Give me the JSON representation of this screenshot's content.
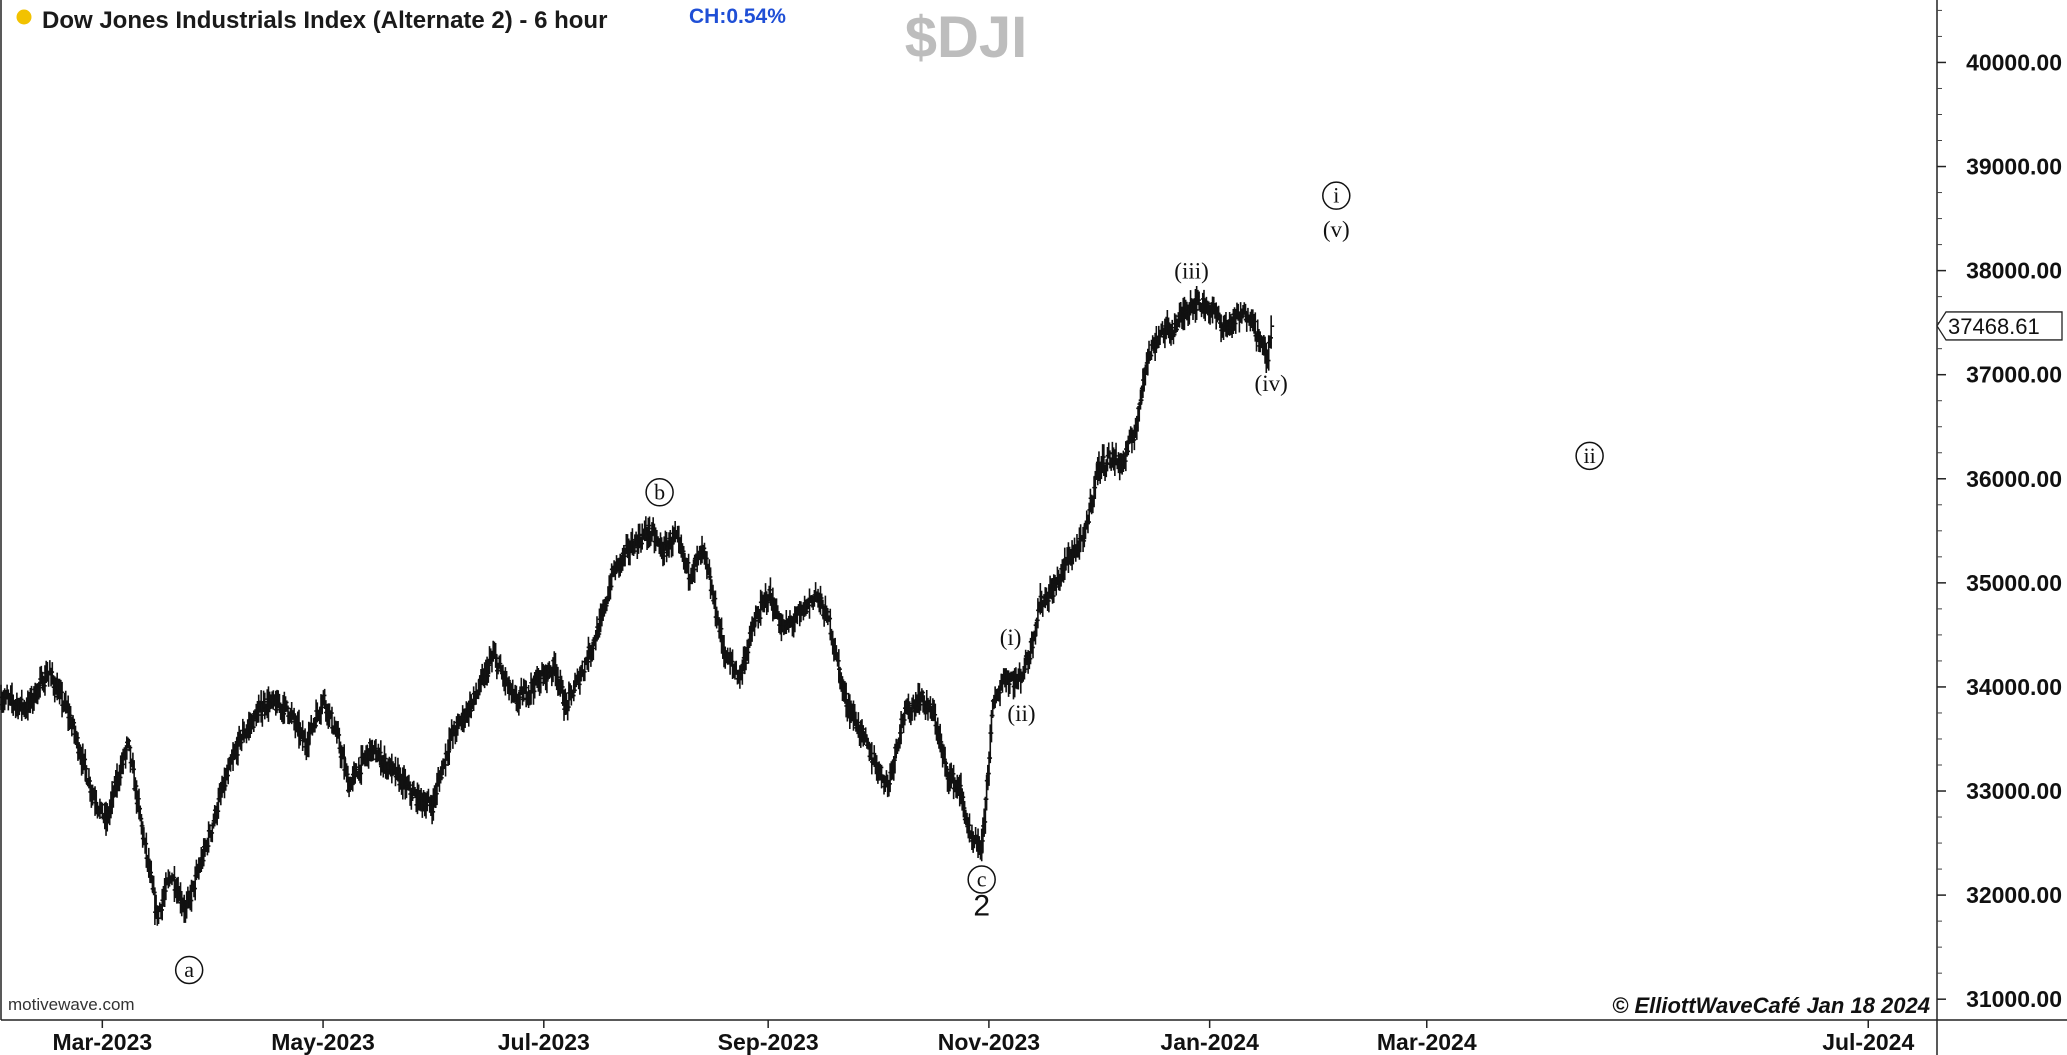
{
  "header": {
    "title": "Dow Jones Industrials Index (Alternate 2) - 6 hour",
    "change": "CH:0.54%",
    "symbol": "$DJI",
    "status_dot_color": "#f2c200"
  },
  "footer": {
    "source": "motivewave.com",
    "copyright": "© ElliottWaveCafé Jan 18 2024"
  },
  "chart_data": {
    "type": "ohlc",
    "title": "Dow Jones Industrials Index (Alternate 2) - 6 hour",
    "xlabel": "",
    "ylabel": "",
    "ylim": [
      30800,
      40600
    ],
    "xlim": [
      "2023-02-01",
      "2024-07-20"
    ],
    "grid": false,
    "price_axis_position": "right",
    "last_price": "37468.61",
    "x_tick_labels": [
      {
        "date": "2023-03-01",
        "label": "Mar-2023"
      },
      {
        "date": "2023-05-01",
        "label": "May-2023"
      },
      {
        "date": "2023-07-01",
        "label": "Jul-2023"
      },
      {
        "date": "2023-09-01",
        "label": "Sep-2023"
      },
      {
        "date": "2023-11-01",
        "label": "Nov-2023"
      },
      {
        "date": "2024-01-01",
        "label": "Jan-2024"
      },
      {
        "date": "2024-03-01",
        "label": "Mar-2024"
      },
      {
        "date": "2024-07-01",
        "label": "Jul-2024"
      }
    ],
    "y_tick_labels": [
      "31000.00",
      "32000.00",
      "33000.00",
      "34000.00",
      "35000.00",
      "36000.00",
      "37000.00",
      "38000.00",
      "39000.00",
      "40000.00"
    ],
    "price_path": [
      {
        "date": "2023-02-01",
        "close": 33900
      },
      {
        "date": "2023-02-08",
        "close": 33800
      },
      {
        "date": "2023-02-14",
        "close": 34150
      },
      {
        "date": "2023-02-20",
        "close": 33700
      },
      {
        "date": "2023-02-26",
        "close": 33000
      },
      {
        "date": "2023-03-02",
        "close": 32700
      },
      {
        "date": "2023-03-05",
        "close": 33100
      },
      {
        "date": "2023-03-08",
        "close": 33450
      },
      {
        "date": "2023-03-13",
        "close": 32400
      },
      {
        "date": "2023-03-16",
        "close": 31800
      },
      {
        "date": "2023-03-20",
        "close": 32200
      },
      {
        "date": "2023-03-24",
        "close": 31850
      },
      {
        "date": "2023-03-29",
        "close": 32400
      },
      {
        "date": "2023-04-03",
        "close": 33000
      },
      {
        "date": "2023-04-08",
        "close": 33500
      },
      {
        "date": "2023-04-15",
        "close": 33850
      },
      {
        "date": "2023-04-21",
        "close": 33800
      },
      {
        "date": "2023-04-26",
        "close": 33450
      },
      {
        "date": "2023-05-01",
        "close": 33900
      },
      {
        "date": "2023-05-05",
        "close": 33500
      },
      {
        "date": "2023-05-08",
        "close": 33050
      },
      {
        "date": "2023-05-14",
        "close": 33400
      },
      {
        "date": "2023-05-20",
        "close": 33200
      },
      {
        "date": "2023-05-26",
        "close": 32950
      },
      {
        "date": "2023-05-31",
        "close": 32850
      },
      {
        "date": "2023-06-05",
        "close": 33500
      },
      {
        "date": "2023-06-12",
        "close": 33900
      },
      {
        "date": "2023-06-17",
        "close": 34300
      },
      {
        "date": "2023-06-23",
        "close": 33850
      },
      {
        "date": "2023-06-29",
        "close": 34050
      },
      {
        "date": "2023-07-04",
        "close": 34200
      },
      {
        "date": "2023-07-07",
        "close": 33800
      },
      {
        "date": "2023-07-12",
        "close": 34200
      },
      {
        "date": "2023-07-17",
        "close": 34650
      },
      {
        "date": "2023-07-20",
        "close": 35100
      },
      {
        "date": "2023-07-25",
        "close": 35350
      },
      {
        "date": "2023-07-30",
        "close": 35500
      },
      {
        "date": "2023-08-03",
        "close": 35300
      },
      {
        "date": "2023-08-06",
        "close": 35450
      },
      {
        "date": "2023-08-10",
        "close": 35100
      },
      {
        "date": "2023-08-14",
        "close": 35300
      },
      {
        "date": "2023-08-17",
        "close": 34800
      },
      {
        "date": "2023-08-20",
        "close": 34300
      },
      {
        "date": "2023-08-24",
        "close": 34100
      },
      {
        "date": "2023-08-28",
        "close": 34600
      },
      {
        "date": "2023-09-01",
        "close": 34900
      },
      {
        "date": "2023-09-05",
        "close": 34550
      },
      {
        "date": "2023-09-10",
        "close": 34700
      },
      {
        "date": "2023-09-14",
        "close": 34900
      },
      {
        "date": "2023-09-18",
        "close": 34600
      },
      {
        "date": "2023-09-22",
        "close": 33900
      },
      {
        "date": "2023-09-26",
        "close": 33600
      },
      {
        "date": "2023-09-30",
        "close": 33300
      },
      {
        "date": "2023-10-04",
        "close": 33050
      },
      {
        "date": "2023-10-08",
        "close": 33700
      },
      {
        "date": "2023-10-13",
        "close": 33900
      },
      {
        "date": "2023-10-17",
        "close": 33700
      },
      {
        "date": "2023-10-20",
        "close": 33200
      },
      {
        "date": "2023-10-24",
        "close": 33000
      },
      {
        "date": "2023-10-27",
        "close": 32500
      },
      {
        "date": "2023-10-30",
        "close": 32450
      },
      {
        "date": "2023-11-02",
        "close": 33800
      },
      {
        "date": "2023-11-05",
        "close": 34100
      },
      {
        "date": "2023-11-09",
        "close": 34050
      },
      {
        "date": "2023-11-12",
        "close": 34300
      },
      {
        "date": "2023-11-15",
        "close": 34800
      },
      {
        "date": "2023-11-19",
        "close": 34950
      },
      {
        "date": "2023-11-23",
        "close": 35250
      },
      {
        "date": "2023-11-27",
        "close": 35400
      },
      {
        "date": "2023-12-01",
        "close": 36100
      },
      {
        "date": "2023-12-04",
        "close": 36200
      },
      {
        "date": "2023-12-08",
        "close": 36150
      },
      {
        "date": "2023-12-12",
        "close": 36550
      },
      {
        "date": "2023-12-14",
        "close": 37100
      },
      {
        "date": "2023-12-18",
        "close": 37400
      },
      {
        "date": "2023-12-22",
        "close": 37450
      },
      {
        "date": "2023-12-27",
        "close": 37700
      },
      {
        "date": "2024-01-01",
        "close": 37650
      },
      {
        "date": "2024-01-05",
        "close": 37450
      },
      {
        "date": "2024-01-09",
        "close": 37550
      },
      {
        "date": "2024-01-12",
        "close": 37600
      },
      {
        "date": "2024-01-15",
        "close": 37300
      },
      {
        "date": "2024-01-17",
        "close": 37150
      },
      {
        "date": "2024-01-18",
        "close": 37450
      }
    ],
    "wave_labels": [
      {
        "label": "a",
        "circled": true,
        "date": "2023-03-25",
        "price": 31280
      },
      {
        "label": "b",
        "circled": true,
        "date": "2023-08-02",
        "price": 35870
      },
      {
        "label": "c",
        "circled": true,
        "date": "2023-10-30",
        "price": 32150
      },
      {
        "label": "2",
        "circled": false,
        "date": "2023-10-30",
        "price": 31900
      },
      {
        "label": "(i)",
        "circled": false,
        "date": "2023-11-07",
        "price": 34480
      },
      {
        "label": "(ii)",
        "circled": false,
        "date": "2023-11-10",
        "price": 33750
      },
      {
        "label": "(iii)",
        "circled": false,
        "date": "2023-12-27",
        "price": 38000
      },
      {
        "label": "(iv)",
        "circled": false,
        "date": "2024-01-18",
        "price": 36920
      },
      {
        "label": "i",
        "circled": true,
        "date": "2024-02-05",
        "price": 38720
      },
      {
        "label": "(v)",
        "circled": false,
        "date": "2024-02-05",
        "price": 38400
      },
      {
        "label": "ii",
        "circled": true,
        "date": "2024-04-15",
        "price": 36220
      }
    ]
  }
}
